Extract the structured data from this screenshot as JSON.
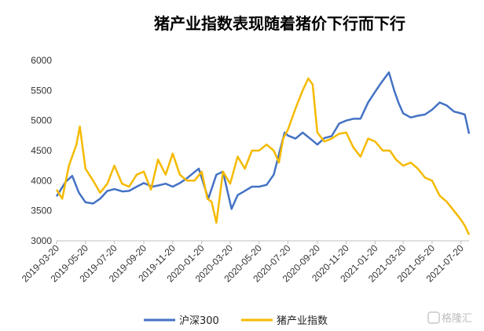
{
  "chart_data": {
    "type": "line",
    "title": "猪产业指数表现随着猪价下行而下行",
    "xlabel": "",
    "ylabel": "",
    "ylim": [
      3000,
      6000
    ],
    "yticks": [
      3000,
      3500,
      4000,
      4500,
      5000,
      5500,
      6000
    ],
    "x_range": [
      "2019-03-20",
      "2021-08-06"
    ],
    "xtick_labels": [
      "2019-03-20",
      "2019-05-20",
      "2019-07-20",
      "2019-09-20",
      "2019-11-20",
      "2020-01-20",
      "2020-03-20",
      "2020-05-20",
      "2020-07-20",
      "2020-09-20",
      "2020-11-20",
      "2021-01-20",
      "2021-03-20",
      "2021-05-20",
      "2021-07-20"
    ],
    "grid": false,
    "legend_position": "bottom",
    "series": [
      {
        "name": "沪深300",
        "color": "#4472C4",
        "x": [
          "2019-03-20",
          "2019-04-08",
          "2019-04-22",
          "2019-05-06",
          "2019-05-20",
          "2019-06-05",
          "2019-06-20",
          "2019-07-05",
          "2019-07-20",
          "2019-08-06",
          "2019-08-20",
          "2019-09-05",
          "2019-09-20",
          "2019-10-08",
          "2019-10-20",
          "2019-11-05",
          "2019-11-20",
          "2019-12-05",
          "2019-12-20",
          "2020-01-06",
          "2020-01-14",
          "2020-02-03",
          "2020-02-20",
          "2020-03-05",
          "2020-03-23",
          "2020-04-05",
          "2020-04-20",
          "2020-05-05",
          "2020-05-20",
          "2020-06-05",
          "2020-06-20",
          "2020-07-03",
          "2020-07-13",
          "2020-07-20",
          "2020-08-05",
          "2020-08-20",
          "2020-09-05",
          "2020-09-20",
          "2020-10-05",
          "2020-10-20",
          "2020-11-05",
          "2020-11-20",
          "2020-12-05",
          "2020-12-20",
          "2021-01-05",
          "2021-01-20",
          "2021-02-01",
          "2021-02-18",
          "2021-03-01",
          "2021-03-10",
          "2021-03-20",
          "2021-04-05",
          "2021-04-20",
          "2021-05-05",
          "2021-05-20",
          "2021-06-05",
          "2021-06-20",
          "2021-07-05",
          "2021-07-20",
          "2021-07-28",
          "2021-08-06"
        ],
        "values": [
          3740,
          3980,
          4080,
          3800,
          3640,
          3620,
          3700,
          3830,
          3860,
          3820,
          3830,
          3900,
          3960,
          3900,
          3920,
          3950,
          3900,
          3960,
          4040,
          4150,
          4200,
          3700,
          4100,
          4150,
          3530,
          3760,
          3830,
          3900,
          3900,
          3930,
          4100,
          4500,
          4800,
          4750,
          4700,
          4800,
          4700,
          4600,
          4710,
          4740,
          4950,
          5000,
          5030,
          5030,
          5300,
          5480,
          5620,
          5800,
          5500,
          5300,
          5120,
          5050,
          5080,
          5100,
          5180,
          5300,
          5250,
          5150,
          5120,
          5100,
          4780
        ]
      },
      {
        "name": "猪产业指数",
        "color": "#F5BA00",
        "x": [
          "2019-03-20",
          "2019-04-01",
          "2019-04-15",
          "2019-05-01",
          "2019-05-08",
          "2019-05-20",
          "2019-06-05",
          "2019-06-20",
          "2019-07-05",
          "2019-07-20",
          "2019-08-05",
          "2019-08-20",
          "2019-09-05",
          "2019-09-20",
          "2019-10-05",
          "2019-10-20",
          "2019-11-05",
          "2019-11-20",
          "2019-12-05",
          "2019-12-20",
          "2020-01-05",
          "2020-01-20",
          "2020-02-01",
          "2020-02-10",
          "2020-02-20",
          "2020-03-05",
          "2020-03-20",
          "2020-04-05",
          "2020-04-20",
          "2020-05-05",
          "2020-05-20",
          "2020-06-05",
          "2020-06-20",
          "2020-07-01",
          "2020-07-10",
          "2020-07-20",
          "2020-08-05",
          "2020-08-20",
          "2020-09-01",
          "2020-09-10",
          "2020-09-20",
          "2020-10-05",
          "2020-10-20",
          "2020-11-05",
          "2020-11-20",
          "2020-12-05",
          "2020-12-20",
          "2021-01-05",
          "2021-01-20",
          "2021-02-05",
          "2021-02-20",
          "2021-03-05",
          "2021-03-20",
          "2021-04-05",
          "2021-04-20",
          "2021-05-05",
          "2021-05-20",
          "2021-06-05",
          "2021-06-20",
          "2021-07-05",
          "2021-07-20",
          "2021-07-28",
          "2021-08-06"
        ],
        "values": [
          3850,
          3700,
          4250,
          4600,
          4900,
          4200,
          4000,
          3800,
          3950,
          4250,
          3950,
          3900,
          4100,
          4150,
          3850,
          4350,
          4100,
          4450,
          4100,
          4000,
          4000,
          4150,
          3700,
          3650,
          3300,
          4150,
          3950,
          4400,
          4200,
          4500,
          4500,
          4600,
          4500,
          4300,
          4700,
          4850,
          5200,
          5500,
          5700,
          5600,
          4800,
          4650,
          4700,
          4780,
          4800,
          4550,
          4400,
          4700,
          4650,
          4500,
          4500,
          4350,
          4250,
          4300,
          4200,
          4050,
          4000,
          3750,
          3650,
          3500,
          3350,
          3250,
          3100
        ]
      }
    ]
  },
  "legend": {
    "items": [
      {
        "label": "沪深300",
        "color": "#4472C4"
      },
      {
        "label": "猪产业指数",
        "color": "#F5BA00"
      }
    ]
  },
  "watermark": {
    "text": "格隆汇"
  }
}
